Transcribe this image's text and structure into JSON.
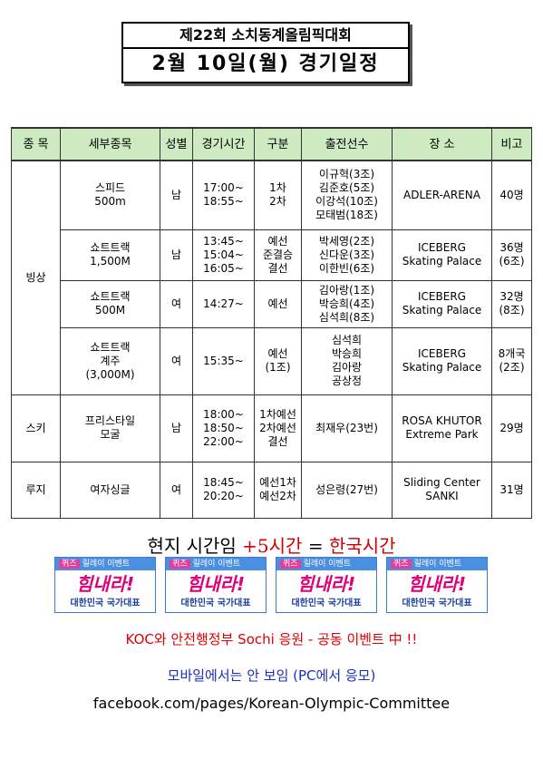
{
  "title": {
    "top": "제22회 소치동계올림픽대회",
    "main": "2월  10일(월)  경기일정"
  },
  "table": {
    "headers": [
      "종 목",
      "세부종목",
      "성별",
      "경기시간",
      "구분",
      "출전선수",
      "장 소",
      "비고"
    ],
    "sports": {
      "ice": "빙상",
      "ski": "스키",
      "luge": "루지"
    },
    "rows": [
      {
        "event": [
          "스피드",
          "500m"
        ],
        "gender": "남",
        "time": [
          "17:00~",
          "18:55~"
        ],
        "round": [
          "1차",
          "2차"
        ],
        "athletes": [
          "이규혁(3조)",
          "김준호(5조)",
          "이강석(10조)",
          "모태범(18조)"
        ],
        "venue": [
          "ADLER-ARENA"
        ],
        "note": [
          "40명"
        ]
      },
      {
        "event": [
          "쇼트트랙",
          "1,500M"
        ],
        "gender": "남",
        "time": [
          "13:45~",
          "15:04~",
          "16:05~"
        ],
        "round": [
          "예선",
          "준결승",
          "결선"
        ],
        "athletes": [
          "박세영(2조)",
          "신다운(3조)",
          "이한빈(6조)"
        ],
        "venue": [
          "ICEBERG",
          "Skating Palace"
        ],
        "note": [
          "36명",
          "(6조)"
        ]
      },
      {
        "event": [
          "쇼트트랙",
          "500M"
        ],
        "gender": "여",
        "time": [
          "14:27~"
        ],
        "round": [
          "예선"
        ],
        "athletes": [
          "김아랑(1조)",
          "박승희(4조)",
          "심석희(8조)"
        ],
        "venue": [
          "ICEBERG",
          "Skating Palace"
        ],
        "note": [
          "32명",
          "(8조)"
        ]
      },
      {
        "event": [
          "쇼트트랙",
          "계주",
          "(3,000M)"
        ],
        "gender": "여",
        "time": [
          "15:35~"
        ],
        "round": [
          "예선",
          "(1조)"
        ],
        "athletes": [
          "심석희",
          "박승희",
          "김아랑",
          "공상정"
        ],
        "venue": [
          "ICEBERG",
          "Skating Palace"
        ],
        "note": [
          "8개국",
          "(2조)"
        ]
      },
      {
        "event": [
          "프리스타일",
          "모굴"
        ],
        "gender": "남",
        "time": [
          "18:00~",
          "18:50~",
          "22:00~"
        ],
        "round": [
          "1차예선",
          "2차예선",
          "결선"
        ],
        "athletes": [
          "최재우(23번)"
        ],
        "venue": [
          "ROSA KHUTOR",
          "Extreme Park"
        ],
        "note": [
          "29명"
        ]
      },
      {
        "event": [
          "여자싱글"
        ],
        "gender": "여",
        "time": [
          "18:45~",
          "20:20~"
        ],
        "round": [
          "예선1차",
          "예선2차"
        ],
        "athletes": [
          "성은령(27번)"
        ],
        "venue": [
          "Sliding Center",
          "SANKI"
        ],
        "note": [
          "31명"
        ]
      }
    ]
  },
  "time_note": {
    "local": "현지 시간임",
    "plus": "+5시간",
    "equals": "=",
    "korea": "한국시간"
  },
  "badge": {
    "quiz": "퀴즈",
    "relay": "릴레이 이벤트",
    "cheer": "힘내라!",
    "team": "대한민국 국가대표"
  },
  "footer": {
    "line1": "KOC와 안전행정부 Sochi 응원 - 공동 이벤트 中 !!",
    "line2": "모바일에서는 안 보임 (PC에서 응모)",
    "line3": "facebook.com/pages/Korean-Olympic-Committee"
  },
  "colors": {
    "header_bg": "#cdeac0",
    "accent_red": "#cc0000",
    "badge_pink": "#e0007a",
    "badge_blue": "#1a3f9e",
    "footer_blue": "#1a2fb8"
  }
}
